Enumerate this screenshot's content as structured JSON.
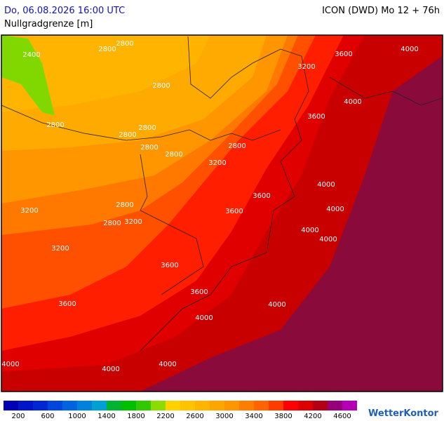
{
  "header": {
    "valid_time": "Do, 06.08.2026 16:00 UTC",
    "model": "ICON (DWD) Mo 12 + 76h",
    "parameter": "Nullgradgrenze [m]"
  },
  "map": {
    "contour_labels": [
      2400,
      2800,
      2800,
      2800,
      2800,
      2800,
      2800,
      2800,
      2800,
      2800,
      2800,
      2800,
      3200,
      3200,
      3200,
      3200,
      3200,
      3600,
      3600,
      3600,
      3600,
      3600,
      3600,
      3600,
      4000,
      4000,
      4000,
      4000,
      4000,
      4000,
      4000,
      4000,
      4000,
      4000,
      4000
    ]
  },
  "legend": {
    "colors": [
      "#0000b4",
      "#0014c8",
      "#0028d2",
      "#0046dc",
      "#0064e0",
      "#0082dc",
      "#00a0d2",
      "#00b432",
      "#00be00",
      "#32c800",
      "#8cdc00",
      "#ffd200",
      "#ffc300",
      "#ffb400",
      "#ffa500",
      "#ff9600",
      "#ff7d00",
      "#ff6400",
      "#ff3c00",
      "#ff0000",
      "#dc0000",
      "#b40014",
      "#960078",
      "#b400b4"
    ],
    "labels": [
      200,
      600,
      1000,
      1400,
      1800,
      2200,
      2600,
      3000,
      3400,
      3800,
      4200,
      4600
    ]
  },
  "logo": "WetterKontor"
}
